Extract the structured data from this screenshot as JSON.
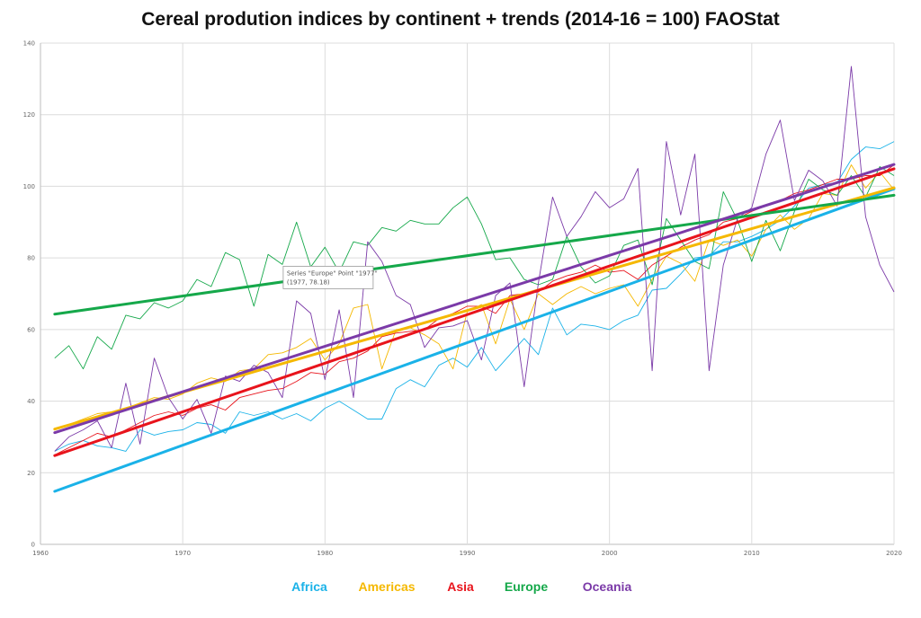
{
  "chart_data": {
    "type": "line",
    "title": "Cereal prodution indices by continent + trends (2014-16 = 100) FAOStat",
    "xlim": [
      1960,
      2020
    ],
    "ylim": [
      0,
      140
    ],
    "x_ticks": [
      1960,
      1970,
      1980,
      1990,
      2000,
      2010,
      2020
    ],
    "y_ticks": [
      0,
      20,
      40,
      60,
      80,
      100,
      120,
      140
    ],
    "grid": true,
    "legend": "bottom",
    "x_start": 1961,
    "series": [
      {
        "name": "Africa",
        "color": "#1ab2e8",
        "values": [
          26,
          28,
          29,
          27.5,
          27,
          26,
          32,
          30.5,
          31.5,
          32,
          34,
          33.5,
          31,
          37,
          36,
          37,
          35,
          36.5,
          34.5,
          38,
          40,
          37.5,
          35,
          35,
          43.5,
          46,
          44,
          50,
          52,
          49.5,
          55,
          48.5,
          53,
          57.5,
          53,
          66,
          58.5,
          61.5,
          61,
          60,
          62.5,
          64,
          71,
          71.5,
          75.5,
          80,
          80.5,
          84.5,
          84.5,
          86,
          88,
          90.5,
          94.5,
          99.5,
          100.5,
          101,
          107.5,
          111,
          110.5,
          112.5
        ]
      },
      {
        "name": "Americas",
        "color": "#f5b800",
        "values": [
          32,
          33.5,
          35,
          36.5,
          37,
          38,
          39.5,
          41,
          40.5,
          42,
          45,
          46.5,
          45.5,
          48.5,
          49,
          53,
          53.5,
          55,
          57.5,
          51.5,
          56,
          66,
          67,
          49,
          60,
          60.5,
          58.5,
          56,
          49,
          65,
          67,
          56,
          68.5,
          60,
          70,
          67,
          70,
          72,
          70,
          71.5,
          72.5,
          66.5,
          74,
          80.5,
          78.5,
          73.5,
          85,
          83.5,
          85,
          80.5,
          88,
          92,
          88,
          91,
          98,
          97.5,
          106,
          99.5,
          104,
          99
        ]
      },
      {
        "name": "Asia",
        "color": "#e8141c",
        "values": [
          25,
          27,
          29,
          31,
          30,
          32,
          34,
          36,
          37,
          36,
          38,
          39,
          37.5,
          41,
          42,
          43,
          43.5,
          45.5,
          48,
          47.5,
          51,
          52,
          54,
          58,
          59,
          59.5,
          60,
          63,
          64.5,
          66.5,
          66.5,
          64.5,
          69.5,
          70,
          70.5,
          73.5,
          75,
          76,
          78,
          76,
          76.5,
          74,
          78,
          80.5,
          83,
          85,
          86.5,
          90,
          91,
          93,
          94.5,
          96,
          98,
          99,
          100.5,
          102,
          102,
          103,
          103,
          106
        ]
      },
      {
        "name": "Europe",
        "color": "#15a84a",
        "values": [
          52,
          55.5,
          49,
          58,
          54.5,
          64,
          63,
          67.5,
          66,
          68,
          74,
          72,
          81.5,
          79.5,
          66.5,
          81,
          78.18,
          90,
          77.5,
          83,
          76,
          84.5,
          83.5,
          88.5,
          87.5,
          90.5,
          89.5,
          89.5,
          94,
          97,
          89.5,
          79.5,
          80,
          74,
          72.5,
          74,
          86,
          77.5,
          73,
          75,
          83.5,
          85,
          72.5,
          91,
          85,
          79,
          77,
          98.5,
          90.5,
          79,
          90.5,
          82,
          93,
          102,
          99,
          97.5,
          103,
          97,
          105.5,
          103
        ]
      },
      {
        "name": "Oceania",
        "color": "#7b3aa8",
        "values": [
          26,
          30,
          32,
          34.5,
          27,
          45,
          28,
          52,
          41,
          35,
          40.5,
          31,
          47,
          45.5,
          50,
          48,
          41,
          68,
          64.5,
          46,
          65.5,
          41,
          84.5,
          79,
          69.5,
          67,
          55,
          60.5,
          61,
          62.5,
          51.5,
          69.5,
          73,
          44,
          73,
          97,
          86,
          91.5,
          98.5,
          94,
          96.5,
          105,
          48.5,
          112.5,
          92,
          109,
          48.5,
          78,
          91,
          94,
          109,
          118.5,
          96,
          104.5,
          101.5,
          94.5,
          133.5,
          91.5,
          78,
          70.5
        ]
      }
    ],
    "trendlines": [
      {
        "name": "Africa",
        "color": "#1ab2e8",
        "y_start": 14.8,
        "y_end": 99.3
      },
      {
        "name": "Americas",
        "color": "#f5b800",
        "y_start": 32.2,
        "y_end": 99.6
      },
      {
        "name": "Asia",
        "color": "#e8141c",
        "y_start": 24.8,
        "y_end": 104.9
      },
      {
        "name": "Europe",
        "color": "#15a84a",
        "y_start": 64.3,
        "y_end": 97.5
      },
      {
        "name": "Oceania",
        "color": "#7b3aa8",
        "y_start": 31.2,
        "y_end": 106.1
      }
    ],
    "tooltip": {
      "line1": "Series \"Europe\" Point \"1977\"",
      "line2": "(1977, 78.18)",
      "x": 1977,
      "y": 78.18
    }
  }
}
